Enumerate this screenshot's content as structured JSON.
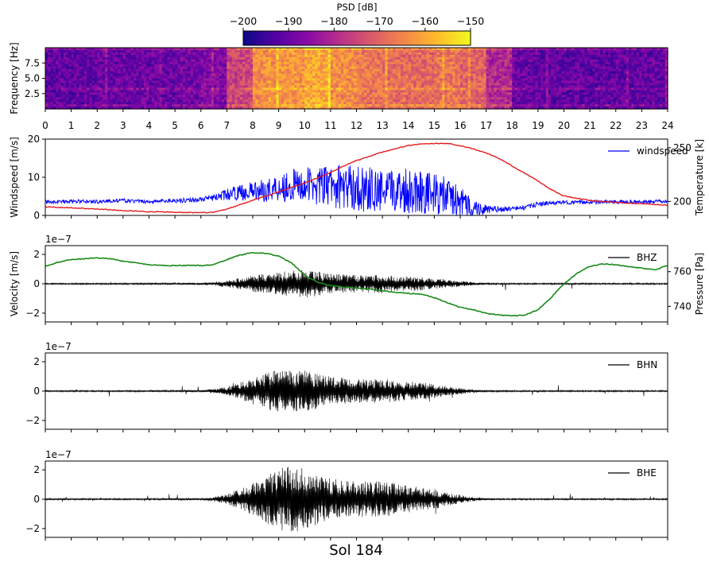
{
  "figure_title": "Sol 184",
  "colors": {
    "windspeed": "#0000ff",
    "temperature": "#e31a1c",
    "pressure": "#1a8a1a",
    "trace": "#000000"
  },
  "chart_data": [
    {
      "type": "heatmap",
      "name": "spectrogram",
      "ylabel": "Frequency [Hz]",
      "yticks": [
        "2.5",
        "5.0",
        "7.5"
      ],
      "ylim": [
        0,
        10
      ],
      "xlim": [
        0,
        24
      ],
      "xticks": [
        "0",
        "1",
        "2",
        "3",
        "4",
        "5",
        "6",
        "7",
        "8",
        "9",
        "10",
        "11",
        "12",
        "13",
        "14",
        "15",
        "16",
        "17",
        "18",
        "19",
        "20",
        "21",
        "22",
        "23",
        "24"
      ],
      "colorbar": {
        "label": "PSD [dB]",
        "range": [
          -200,
          -150
        ],
        "ticks": [
          "−200",
          "−190",
          "−180",
          "−170",
          "−160",
          "−150"
        ],
        "colormap": "plasma"
      },
      "hour_energy": [
        0.18,
        0.18,
        0.2,
        0.2,
        0.2,
        0.22,
        0.25,
        0.5,
        0.72,
        0.75,
        0.8,
        0.72,
        0.65,
        0.62,
        0.62,
        0.65,
        0.6,
        0.4,
        0.2,
        0.18,
        0.18,
        0.18,
        0.18,
        0.18
      ]
    },
    {
      "type": "line",
      "name": "wind-temperature",
      "ylabel": "Windspeed [m/s]",
      "ylabel_right": "Temperature [k]",
      "ylim": [
        0,
        20
      ],
      "yticks": [
        "0",
        "10",
        "20"
      ],
      "ylim_right": [
        187,
        258
      ],
      "yticks_right": [
        "200",
        "250"
      ],
      "xlim": [
        0,
        24
      ],
      "legend": "windspeed",
      "series": [
        {
          "name": "windspeed",
          "axis": "left",
          "x": [
            0,
            0.5,
            1,
            1.5,
            2,
            2.5,
            3,
            3.5,
            4,
            4.5,
            5,
            5.5,
            6,
            6.5,
            7,
            7.5,
            8,
            8.5,
            9,
            9.5,
            10,
            10.5,
            11,
            11.5,
            12,
            12.5,
            13,
            13.5,
            14,
            14.5,
            15,
            15.5,
            16,
            16.5,
            17,
            17.5,
            18,
            18.5,
            19,
            19.5,
            20,
            20.5,
            21,
            21.5,
            22,
            22.5,
            23,
            23.5,
            24
          ],
          "y": [
            3.5,
            3.6,
            3.6,
            3.7,
            3.6,
            3.8,
            3.9,
            3.7,
            3.6,
            3.8,
            3.9,
            4.0,
            4.2,
            4.6,
            5.5,
            6.0,
            6.4,
            6.5,
            7.5,
            7.8,
            8.0,
            7.8,
            7.6,
            7.5,
            7.2,
            6.8,
            6.0,
            6.5,
            6.8,
            6.5,
            5.5,
            5.0,
            3.5,
            2.0,
            1.5,
            1.6,
            1.8,
            2.0,
            3.0,
            3.2,
            3.4,
            3.4,
            3.5,
            3.5,
            3.5,
            3.6,
            3.5,
            3.6,
            3.6
          ],
          "spread": [
            0.5,
            0.5,
            0.5,
            0.5,
            0.5,
            0.5,
            0.5,
            0.5,
            0.5,
            0.5,
            0.6,
            0.6,
            0.6,
            0.8,
            1.5,
            2.0,
            2.5,
            3.0,
            4.0,
            4.5,
            4.5,
            5.0,
            5.5,
            6.0,
            6.0,
            6.0,
            5.5,
            5.5,
            6.5,
            6.0,
            5.5,
            5.0,
            4.0,
            2.5,
            1.2,
            0.8,
            0.6,
            0.6,
            0.6,
            0.5,
            0.5,
            0.5,
            0.5,
            0.5,
            0.5,
            0.5,
            0.5,
            0.5,
            0.5
          ]
        },
        {
          "name": "temperature",
          "axis": "right",
          "x": [
            0,
            1,
            2,
            3,
            4,
            5,
            6,
            6.5,
            7,
            7.5,
            8,
            8.5,
            9,
            9.5,
            10,
            10.5,
            11,
            11.5,
            12,
            12.5,
            13,
            13.5,
            14,
            14.5,
            15,
            15.5,
            16,
            16.5,
            17,
            17.5,
            18,
            18.5,
            19,
            19.5,
            20,
            21,
            22,
            23,
            24
          ],
          "y": [
            195,
            194,
            193,
            191.5,
            190.5,
            190,
            189.5,
            190,
            193,
            197,
            201,
            205,
            209,
            213,
            217,
            222,
            227,
            233,
            238,
            242,
            246,
            249,
            252,
            253.5,
            254,
            254,
            252,
            249,
            245,
            240,
            233,
            226,
            219,
            211,
            205,
            201,
            199,
            198,
            196.5
          ]
        }
      ]
    },
    {
      "type": "line",
      "name": "BHZ-pressure",
      "ylabel": "Velocity [m/s]",
      "ylabel_right": "Pressure [Pa]",
      "scale_label": "1e−7",
      "ylim": [
        -2.6,
        2.6
      ],
      "yticks": [
        "−2",
        "0",
        "2"
      ],
      "ylim_right": [
        731,
        775
      ],
      "yticks_right": [
        "740",
        "760"
      ],
      "xlim": [
        0,
        24
      ],
      "legend": "BHZ",
      "series": [
        {
          "name": "BHZ",
          "axis": "left",
          "envelope_x": [
            0,
            1,
            2,
            3,
            4,
            5,
            6,
            6.5,
            7,
            7.5,
            8,
            8.5,
            9,
            9.5,
            10,
            10.5,
            11,
            11.5,
            12,
            12.5,
            13,
            13.5,
            14,
            14.5,
            15,
            15.5,
            16,
            16.5,
            17,
            18,
            19,
            20,
            21,
            22,
            23,
            24
          ],
          "envelope_y": [
            0.05,
            0.05,
            0.05,
            0.05,
            0.06,
            0.06,
            0.07,
            0.12,
            0.25,
            0.4,
            0.55,
            0.7,
            0.85,
            0.9,
            0.95,
            0.85,
            0.7,
            0.65,
            0.6,
            0.6,
            0.62,
            0.55,
            0.5,
            0.45,
            0.4,
            0.3,
            0.2,
            0.12,
            0.06,
            0.05,
            0.05,
            0.05,
            0.05,
            0.05,
            0.05,
            0.05
          ]
        },
        {
          "name": "pressure",
          "axis": "right",
          "x": [
            0,
            0.5,
            1,
            1.5,
            2,
            2.5,
            3,
            3.5,
            4,
            4.5,
            5,
            5.5,
            6,
            6.5,
            7,
            7.5,
            8,
            8.5,
            9,
            9.5,
            10,
            10.5,
            11,
            11.5,
            12,
            12.5,
            13,
            13.5,
            14,
            14.5,
            15,
            15.5,
            16,
            16.5,
            17,
            17.5,
            18,
            18.5,
            19,
            19.5,
            20,
            20.5,
            21,
            21.5,
            22,
            22.5,
            23,
            23.5,
            24
          ],
          "y": [
            763,
            765.5,
            767,
            767.5,
            768,
            767.5,
            766,
            765,
            764,
            763.5,
            763.5,
            763.5,
            763.5,
            764,
            767,
            769.5,
            771,
            770.5,
            769,
            765,
            758,
            754,
            752,
            751,
            750.5,
            750,
            749,
            748,
            747.5,
            747,
            745,
            742,
            739.5,
            738,
            736,
            735,
            734.5,
            735,
            738,
            745,
            753,
            759,
            763,
            764.5,
            764,
            763,
            762,
            761,
            763.5
          ]
        }
      ]
    },
    {
      "type": "line",
      "name": "BHN",
      "scale_label": "1e−7",
      "ylim": [
        -2.6,
        2.6
      ],
      "yticks": [
        "−2",
        "0",
        "2"
      ],
      "xlim": [
        0,
        24
      ],
      "legend": "BHN",
      "series": [
        {
          "name": "BHN",
          "envelope_x": [
            0,
            1,
            2,
            3,
            4,
            5,
            6,
            6.5,
            7,
            7.5,
            8,
            8.5,
            9,
            9.5,
            10,
            10.5,
            11,
            11.5,
            12,
            12.5,
            13,
            13.5,
            14,
            14.5,
            15,
            15.5,
            16,
            16.5,
            17,
            18,
            19,
            20,
            21,
            22,
            23,
            24
          ],
          "envelope_y": [
            0.05,
            0.05,
            0.05,
            0.05,
            0.06,
            0.06,
            0.07,
            0.15,
            0.3,
            0.6,
            0.9,
            1.3,
            1.45,
            1.4,
            1.35,
            1.2,
            1.0,
            0.9,
            0.8,
            0.8,
            0.85,
            0.75,
            0.65,
            0.6,
            0.5,
            0.35,
            0.22,
            0.12,
            0.07,
            0.05,
            0.05,
            0.05,
            0.05,
            0.05,
            0.05,
            0.05
          ]
        }
      ]
    },
    {
      "type": "line",
      "name": "BHE",
      "scale_label": "1e−7",
      "ylim": [
        -2.6,
        2.6
      ],
      "yticks": [
        "−2",
        "0",
        "2"
      ],
      "xlim": [
        0,
        24
      ],
      "legend": "BHE",
      "series": [
        {
          "name": "BHE",
          "envelope_x": [
            0,
            1,
            2,
            3,
            4,
            5,
            6,
            6.5,
            7,
            7.5,
            8,
            8.5,
            9,
            9.5,
            10,
            10.5,
            11,
            11.5,
            12,
            12.5,
            13,
            13.5,
            14,
            14.5,
            15,
            15.5,
            16,
            16.5,
            17,
            18,
            19,
            20,
            21,
            22,
            23,
            24
          ],
          "envelope_y": [
            0.05,
            0.05,
            0.05,
            0.05,
            0.06,
            0.06,
            0.07,
            0.15,
            0.35,
            0.7,
            1.1,
            1.6,
            2.1,
            2.3,
            2.1,
            1.7,
            1.4,
            1.3,
            1.2,
            1.2,
            1.25,
            1.1,
            0.9,
            0.8,
            0.7,
            0.45,
            0.28,
            0.15,
            0.07,
            0.05,
            0.05,
            0.05,
            0.05,
            0.05,
            0.05,
            0.05
          ]
        }
      ]
    }
  ]
}
